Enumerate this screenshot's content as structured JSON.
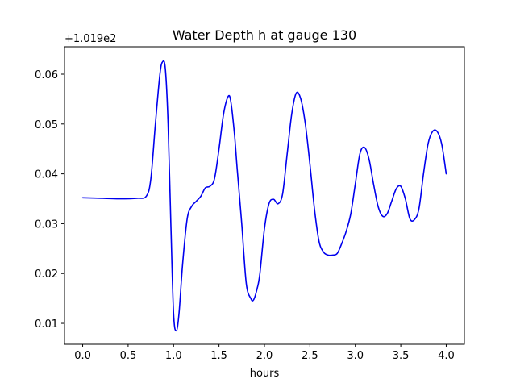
{
  "chart_data": {
    "type": "line",
    "title": "Water Depth h at gauge 130",
    "xlabel": "hours",
    "ylabel": "",
    "y_offset_label": "+1.019e2",
    "xlim": [
      -0.2,
      4.2
    ],
    "ylim": [
      0.0058,
      0.0655
    ],
    "x_ticks": [
      0.0,
      0.5,
      1.0,
      1.5,
      2.0,
      2.5,
      3.0,
      3.5,
      4.0
    ],
    "x_tick_labels": [
      "0.0",
      "0.5",
      "1.0",
      "1.5",
      "2.0",
      "2.5",
      "3.0",
      "3.5",
      "4.0"
    ],
    "y_ticks": [
      0.01,
      0.02,
      0.03,
      0.04,
      0.05,
      0.06
    ],
    "y_tick_labels": [
      "0.01",
      "0.02",
      "0.03",
      "0.04",
      "0.05",
      "0.06"
    ],
    "grid": false,
    "line_color": "#0000ee",
    "series": [
      {
        "x": [
          0.0,
          0.2,
          0.4,
          0.6,
          0.7,
          0.75,
          0.8,
          0.85,
          0.88,
          0.91,
          0.94,
          0.97,
          1.0,
          1.03,
          1.06,
          1.1,
          1.15,
          1.2,
          1.25,
          1.3,
          1.35,
          1.4,
          1.45,
          1.5,
          1.55,
          1.6,
          1.63,
          1.67,
          1.7,
          1.75,
          1.8,
          1.85,
          1.88,
          1.92,
          1.95,
          2.0,
          2.05,
          2.1,
          2.15,
          2.2,
          2.25,
          2.3,
          2.35,
          2.4,
          2.45,
          2.5,
          2.55,
          2.6,
          2.65,
          2.7,
          2.75,
          2.8,
          2.85,
          2.9,
          2.95,
          3.0,
          3.05,
          3.1,
          3.15,
          3.2,
          3.25,
          3.3,
          3.35,
          3.4,
          3.45,
          3.5,
          3.55,
          3.6,
          3.65,
          3.7,
          3.75,
          3.8,
          3.85,
          3.9,
          3.95,
          4.0
        ],
        "y": [
          0.0352,
          0.0351,
          0.035,
          0.0351,
          0.0355,
          0.039,
          0.05,
          0.06,
          0.0625,
          0.061,
          0.05,
          0.03,
          0.012,
          0.0085,
          0.012,
          0.022,
          0.031,
          0.0335,
          0.0345,
          0.0355,
          0.0372,
          0.0375,
          0.039,
          0.045,
          0.052,
          0.0555,
          0.0545,
          0.048,
          0.041,
          0.03,
          0.018,
          0.015,
          0.0147,
          0.017,
          0.02,
          0.029,
          0.034,
          0.0349,
          0.034,
          0.036,
          0.044,
          0.052,
          0.0562,
          0.055,
          0.05,
          0.042,
          0.033,
          0.0265,
          0.0243,
          0.0237,
          0.0237,
          0.024,
          0.026,
          0.0285,
          0.032,
          0.038,
          0.044,
          0.0453,
          0.043,
          0.038,
          0.0335,
          0.0315,
          0.032,
          0.0345,
          0.037,
          0.0375,
          0.035,
          0.031,
          0.0308,
          0.033,
          0.04,
          0.046,
          0.0485,
          0.0485,
          0.046,
          0.04
        ]
      }
    ]
  }
}
